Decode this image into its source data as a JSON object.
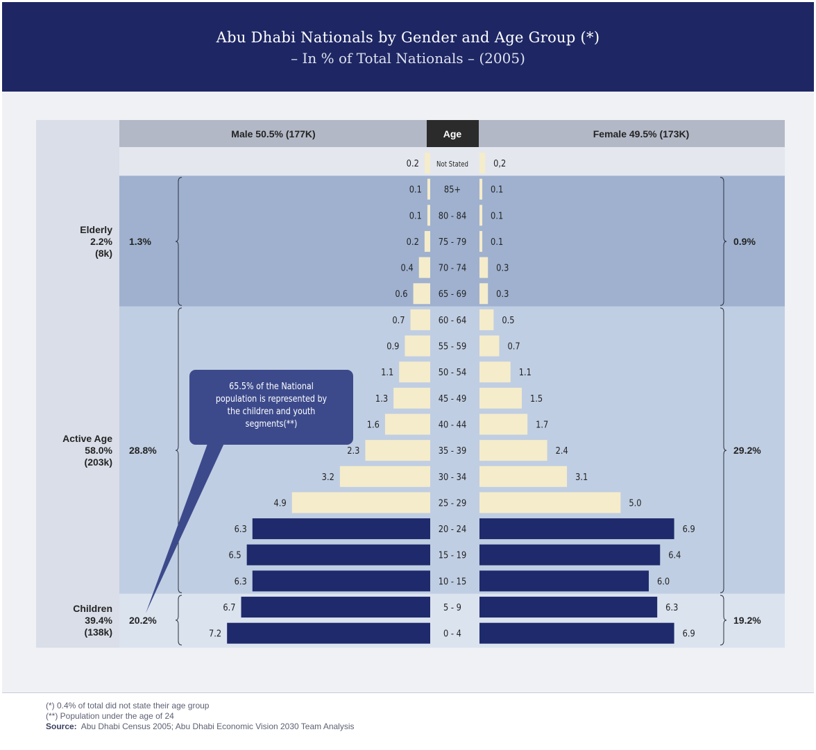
{
  "title": "Abu Dhabi Nationals by Gender and Age Group (*)",
  "subtitle": "– In % of Total Nationals – (2005)",
  "chart_data": {
    "type": "bar",
    "orientation": "horizontal",
    "header": {
      "male": "Male 50.5% (177K)",
      "age": "Age",
      "female": "Female 49.5% (173K)"
    },
    "categories": [
      "Not Stated",
      "85+",
      "80 - 84",
      "75 - 79",
      "70 - 74",
      "65 - 69",
      "60 - 64",
      "55 - 59",
      "50 - 54",
      "45 - 49",
      "40 - 44",
      "35 - 39",
      "30 - 34",
      "25 - 29",
      "20 - 24",
      "15 - 19",
      "10 - 15",
      "5 - 9",
      "0 - 4"
    ],
    "series": [
      {
        "name": "Male 50.5% (177K)",
        "values": [
          0.2,
          0.1,
          0.1,
          0.2,
          0.4,
          0.6,
          0.7,
          0.9,
          1.1,
          1.3,
          1.6,
          2.3,
          3.2,
          4.9,
          6.3,
          6.5,
          6.3,
          6.7,
          7.2
        ]
      },
      {
        "name": "Female 49.5% (173K)",
        "values": [
          0.2,
          0.1,
          0.1,
          0.1,
          0.3,
          0.3,
          0.5,
          0.7,
          1.1,
          1.5,
          1.7,
          2.4,
          3.1,
          5.0,
          6.9,
          6.4,
          6.0,
          6.3,
          6.9
        ]
      }
    ],
    "value_labels": {
      "male": [
        "0.2",
        "0.1",
        "0.1",
        "0.2",
        "0.4",
        "0.6",
        "0.7",
        "0.9",
        "1.1",
        "1.3",
        "1.6",
        "2.3",
        "3.2",
        "4.9",
        "6.3",
        "6.5",
        "6.3",
        "6.7",
        "7.2"
      ],
      "female": [
        "0,2",
        "0.1",
        "0.1",
        "0.1",
        "0.3",
        "0.3",
        "0.5",
        "0.7",
        "1.1",
        "1.5",
        "1.7",
        "2.4",
        "3.1",
        "5.0",
        "6.9",
        "6.4",
        "6.0",
        "6.3",
        "6.9"
      ]
    },
    "highlighted_categories": [
      "20 - 24",
      "15 - 19",
      "10 - 15",
      "5 - 9",
      "0 - 4"
    ],
    "groups": [
      {
        "key": "elderly",
        "label_lines": [
          "Elderly",
          "2.2%",
          "(8k)"
        ],
        "male_share": "1.3%",
        "female_share": "0.9%",
        "from": 1,
        "to": 5
      },
      {
        "key": "active",
        "label_lines": [
          "Active Age",
          "58.0%",
          "(203k)"
        ],
        "male_share": "28.8%",
        "female_share": "29.2%",
        "from": 6,
        "to": 16
      },
      {
        "key": "children",
        "label_lines": [
          "Children",
          "39.4%",
          "(138k)"
        ],
        "male_share": "20.2%",
        "female_share": "19.2%",
        "from": 17,
        "to": 18
      }
    ],
    "callout": [
      "65.5% of the National",
      "population is represented by",
      "the children and youth",
      "segments(**)"
    ],
    "xlim": [
      0,
      7.5
    ],
    "colors": {
      "bar_light": "#f5eccb",
      "bar_dark": "#1e2a6b",
      "header_bg": "#b3b8c6",
      "age_header_bg": "#2b2b2b",
      "not_stated_bg": "#e4e7ee",
      "elderly_bg": "#9fb1cf",
      "active_bg": "#c0cee3",
      "children_bg": "#dbe3ef",
      "left_column_bg": "#d9dee8",
      "callout_bg": "#3c4a8c",
      "text": "#232323"
    }
  },
  "footnotes": {
    "note1": "(*)  0.4% of total did not state their age group",
    "note2": "(**)  Population under the age of 24",
    "source_label": "Source:",
    "source_text": "Abu Dhabi Census 2005; Abu Dhabi Economic Vision 2030 Team Analysis"
  }
}
